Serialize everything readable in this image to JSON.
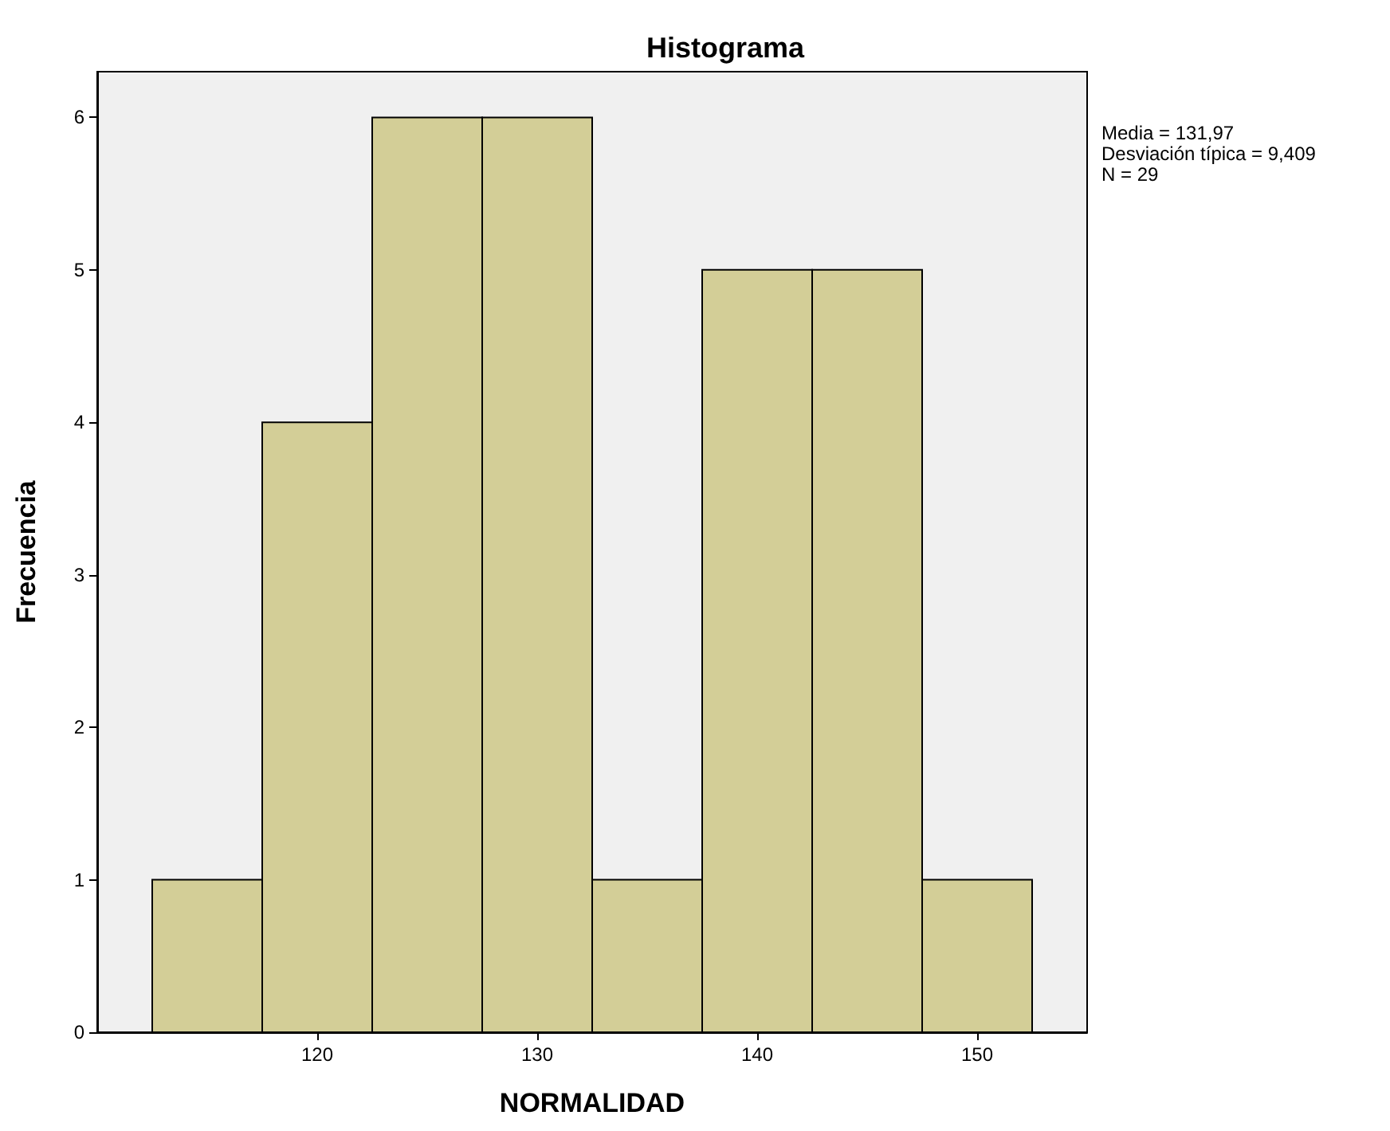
{
  "chart_data": {
    "type": "histogram",
    "title": "Histograma",
    "xlabel": "NORMALIDAD",
    "ylabel": "Frecuencia",
    "bins": [
      112.5,
      117.5,
      122.5,
      127.5,
      132.5,
      137.5,
      142.5,
      147.5,
      152.5
    ],
    "values": [
      1,
      4,
      6,
      6,
      1,
      5,
      5,
      1
    ],
    "color": "#d3ce97",
    "xlim": [
      110,
      155
    ],
    "xticks": [
      120,
      130,
      140,
      150
    ],
    "ylim": [
      0,
      6.3
    ],
    "yticks": [
      0,
      1,
      2,
      3,
      4,
      5,
      6
    ],
    "grid": false,
    "annotations": [
      "Media = 131,97",
      "Desviación típica = 9,409",
      "N = 29"
    ]
  }
}
